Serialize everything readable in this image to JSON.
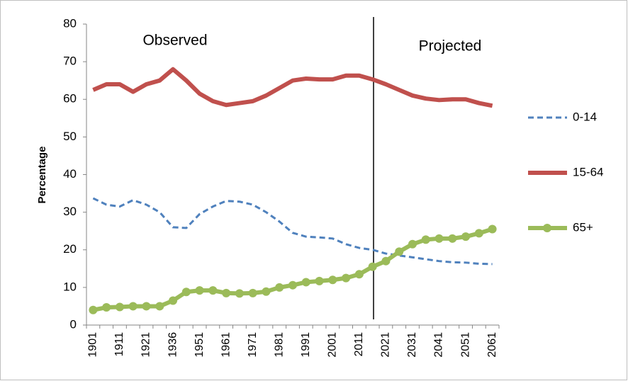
{
  "chart_data": {
    "type": "line",
    "y_label": "Percentage",
    "annotations": [
      "Observed",
      "Projected"
    ],
    "categories": [
      "1901",
      null,
      "1911",
      null,
      "1921",
      null,
      "1936",
      null,
      "1951",
      null,
      "1961",
      null,
      "1971",
      null,
      "1981",
      null,
      "1991",
      null,
      "2001",
      null,
      "2011",
      null,
      "2021",
      null,
      "2031",
      null,
      "2041",
      null,
      "2051",
      null,
      "2061"
    ],
    "series": [
      {
        "name": "0-14",
        "color": "#4f81bd",
        "dashed": true,
        "markers": false,
        "values": [
          33.7,
          32,
          31.5,
          33.2,
          32,
          30,
          26,
          25.8,
          29.5,
          31.5,
          33,
          32.8,
          32,
          30,
          27.5,
          24.5,
          23.5,
          23.3,
          23,
          21.5,
          20.5,
          20,
          19,
          18.5,
          18,
          17.5,
          17,
          16.7,
          16.6,
          16.3,
          16.2
        ]
      },
      {
        "name": "15-64",
        "color": "#c0504d",
        "dashed": false,
        "markers": false,
        "values": [
          62.5,
          64,
          64,
          62,
          64,
          65,
          68,
          65,
          61.5,
          59.5,
          58.5,
          59,
          59.5,
          61,
          63,
          65,
          65.5,
          65.3,
          65.3,
          66.3,
          66.3,
          65.3,
          64,
          62.5,
          61,
          60.2,
          59.8,
          60,
          60,
          59,
          58.3
        ]
      },
      {
        "name": "65+",
        "color": "#9bbb59",
        "dashed": false,
        "markers": true,
        "values": [
          4,
          4.7,
          4.8,
          5,
          5,
          5,
          6.5,
          8.8,
          9.2,
          9.2,
          8.5,
          8.4,
          8.5,
          8.9,
          10,
          10.6,
          11.4,
          11.7,
          12,
          12.5,
          13.5,
          15.5,
          17,
          19.5,
          21.5,
          22.7,
          23,
          23,
          23.5,
          24.4,
          25.5
        ]
      }
    ],
    "ylim": [
      0,
      80
    ],
    "yticks": [
      0,
      10,
      20,
      30,
      40,
      50,
      60,
      70,
      80
    ],
    "grid": false,
    "legend": "right"
  }
}
